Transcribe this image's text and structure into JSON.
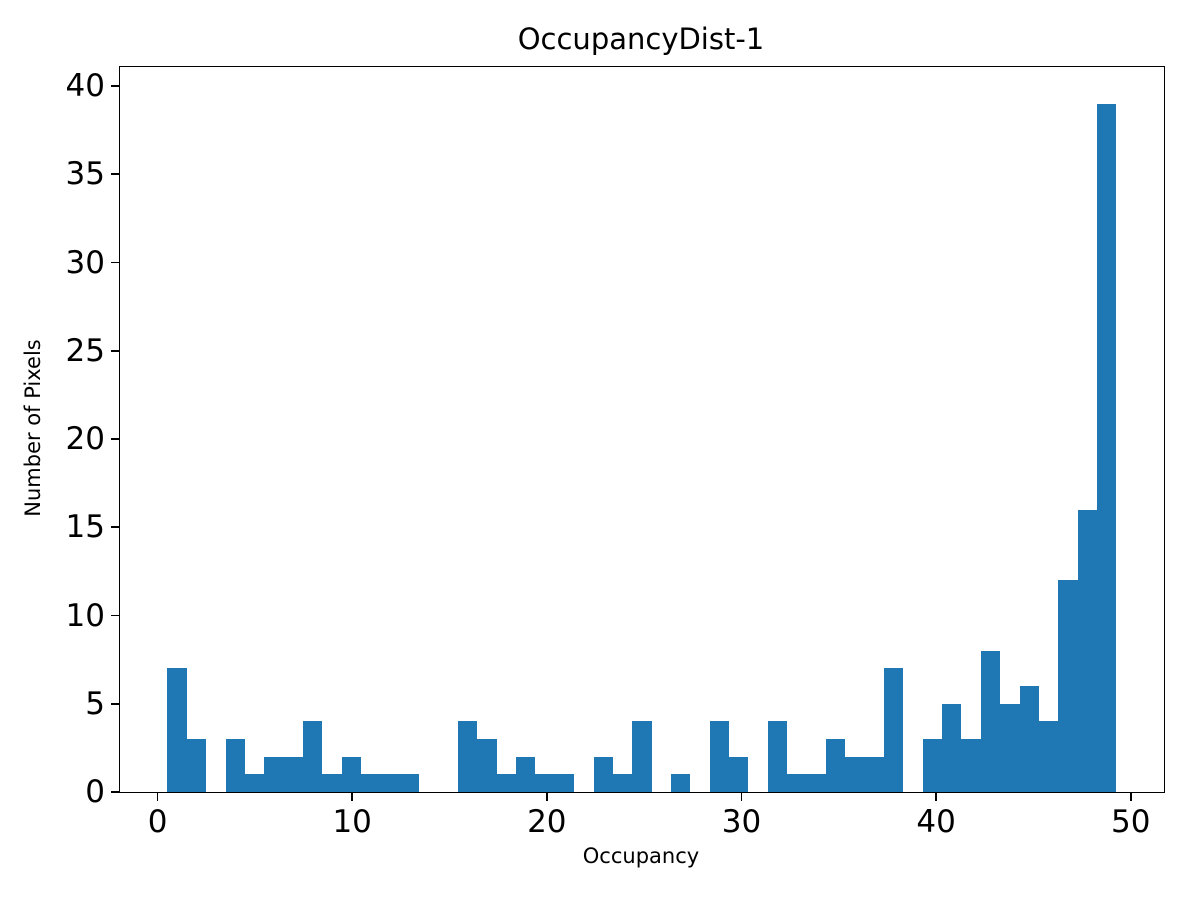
{
  "chart_data": {
    "type": "bar",
    "subtype": "histogram",
    "title": "OccupancyDist-1",
    "xlabel": "Occupancy",
    "ylabel": "Number of Pixels",
    "bar_color": "#1f77b4",
    "background_color": "#ffffff",
    "grid": false,
    "legend_position": "none",
    "bin_start": 0.51,
    "bin_width": 0.995,
    "counts": [
      7,
      3,
      0,
      3,
      1,
      2,
      2,
      4,
      1,
      2,
      1,
      1,
      1,
      0,
      0,
      4,
      3,
      1,
      2,
      1,
      1,
      0,
      2,
      1,
      4,
      0,
      1,
      0,
      4,
      2,
      0,
      4,
      1,
      1,
      3,
      2,
      2,
      7,
      0,
      3,
      5,
      3,
      8,
      5,
      6,
      4,
      12,
      16,
      39
    ],
    "xticks": [
      0,
      10,
      20,
      30,
      40,
      50
    ],
    "yticks": [
      0,
      5,
      10,
      15,
      20,
      25,
      30,
      35,
      40
    ],
    "xlim": [
      -1.93,
      51.71
    ],
    "ylim": [
      0,
      41.08
    ]
  }
}
